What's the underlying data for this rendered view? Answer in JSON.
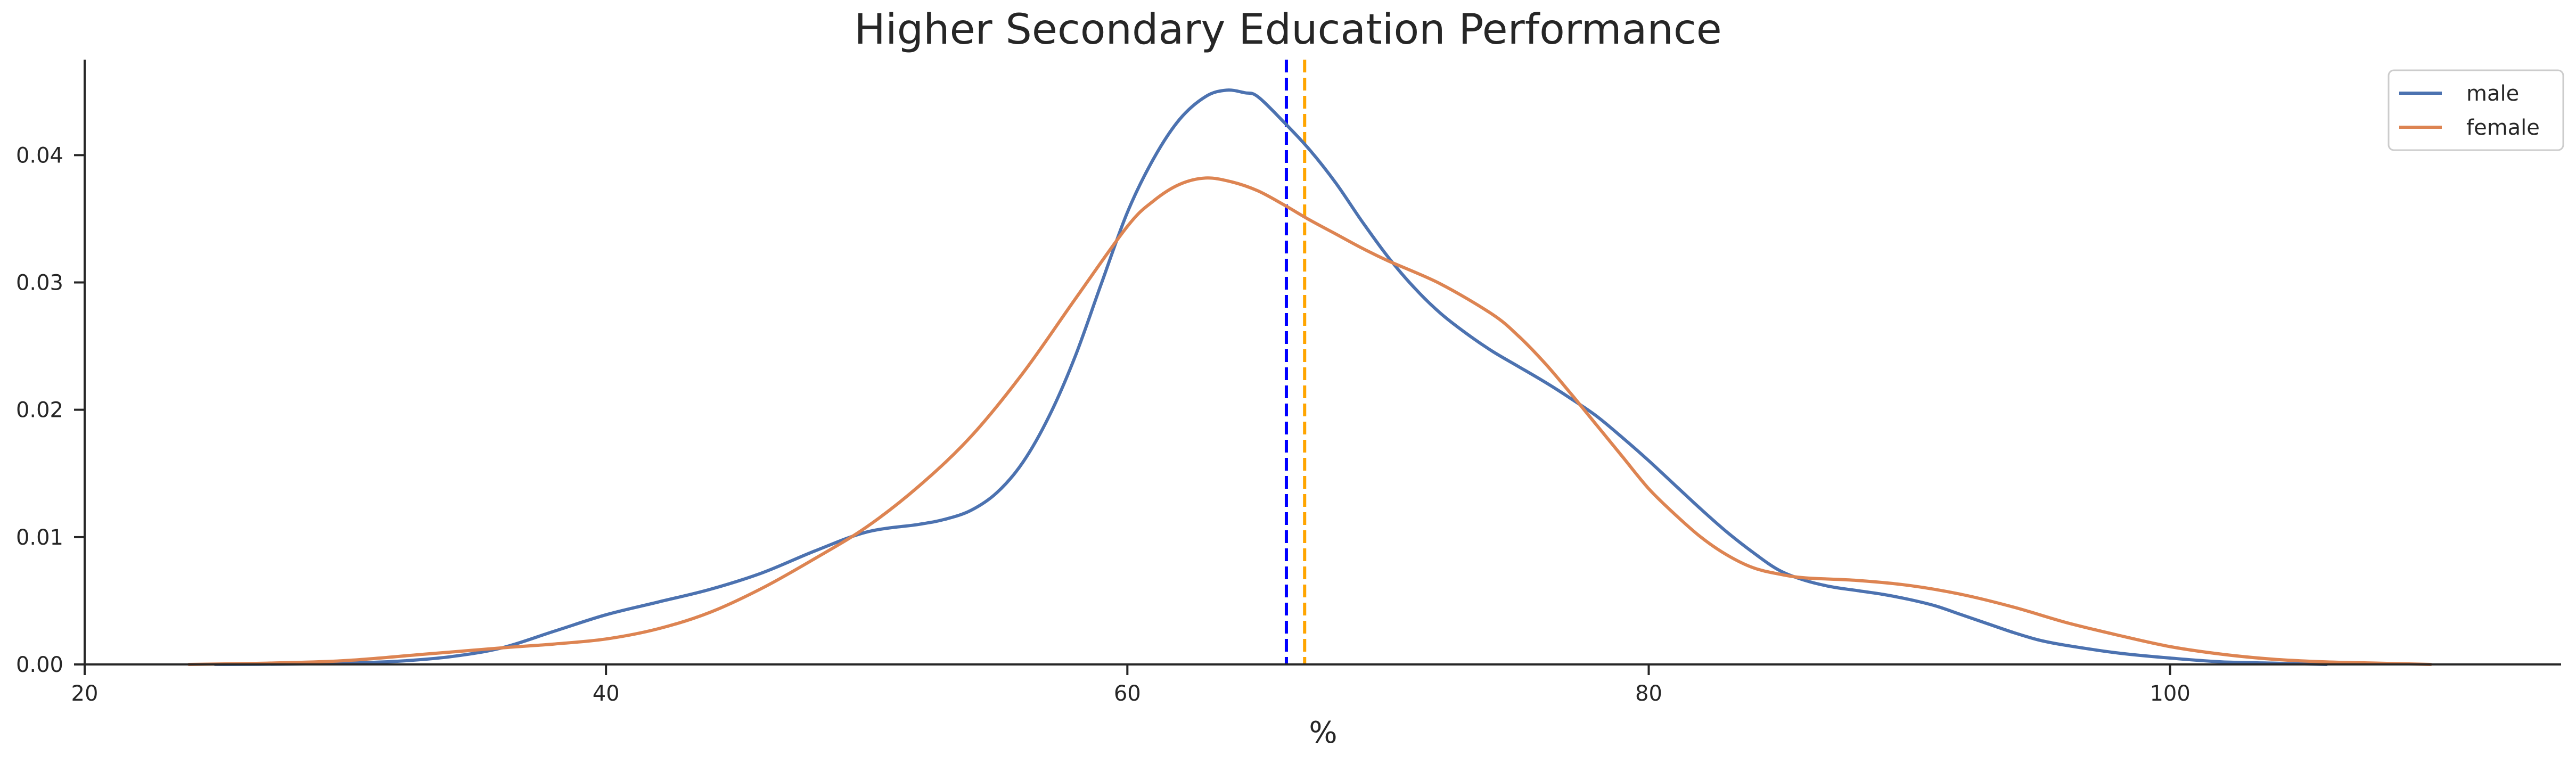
{
  "chart_data": {
    "type": "line",
    "title": "Higher Secondary Education Performance",
    "xlabel": "%",
    "ylabel": "",
    "xlim": [
      20,
      115
    ],
    "ylim": [
      0,
      0.0475
    ],
    "x_ticks": [
      20,
      40,
      60,
      80,
      100
    ],
    "y_ticks": [
      0.0,
      0.01,
      0.02,
      0.03,
      0.04
    ],
    "x_tick_labels": [
      "20",
      "40",
      "60",
      "80",
      "100"
    ],
    "y_tick_labels": [
      "0.00",
      "0.01",
      "0.02",
      "0.03",
      "0.04"
    ],
    "grid": false,
    "legend": {
      "position": "top-right",
      "entries": [
        "male",
        "female"
      ]
    },
    "series": [
      {
        "name": "male",
        "color": "#4c72b0",
        "points": [
          [
            25,
            0.0
          ],
          [
            28,
            3e-05
          ],
          [
            30,
            0.0001
          ],
          [
            32,
            0.00025
          ],
          [
            34,
            0.0006
          ],
          [
            36,
            0.0013
          ],
          [
            38,
            0.0026
          ],
          [
            40,
            0.0039
          ],
          [
            42,
            0.0049
          ],
          [
            44,
            0.0059
          ],
          [
            46,
            0.0072
          ],
          [
            48,
            0.0089
          ],
          [
            50,
            0.0104
          ],
          [
            52,
            0.011
          ],
          [
            53,
            0.0114
          ],
          [
            54,
            0.0121
          ],
          [
            55,
            0.0135
          ],
          [
            56,
            0.0159
          ],
          [
            57,
            0.0195
          ],
          [
            58,
            0.0242
          ],
          [
            59,
            0.0299
          ],
          [
            60,
            0.0355
          ],
          [
            61,
            0.0397
          ],
          [
            62,
            0.0428
          ],
          [
            63,
            0.0446
          ],
          [
            63.8,
            0.0451
          ],
          [
            64.5,
            0.0449
          ],
          [
            65,
            0.0446
          ],
          [
            66,
            0.0426
          ],
          [
            67,
            0.0404
          ],
          [
            68,
            0.0378
          ],
          [
            69,
            0.0348
          ],
          [
            70,
            0.032
          ],
          [
            71,
            0.0296
          ],
          [
            72,
            0.0276
          ],
          [
            73,
            0.026
          ],
          [
            74,
            0.0246
          ],
          [
            75,
            0.0234
          ],
          [
            76,
            0.0222
          ],
          [
            77,
            0.0209
          ],
          [
            78,
            0.0195
          ],
          [
            79,
            0.0178
          ],
          [
            80,
            0.016
          ],
          [
            81,
            0.0141
          ],
          [
            82,
            0.0122
          ],
          [
            83,
            0.0104
          ],
          [
            84,
            0.0088
          ],
          [
            85,
            0.0074
          ],
          [
            86,
            0.0066
          ],
          [
            87,
            0.0061
          ],
          [
            88,
            0.0058
          ],
          [
            89,
            0.0055
          ],
          [
            90,
            0.0051
          ],
          [
            91,
            0.0046
          ],
          [
            92,
            0.0039
          ],
          [
            93,
            0.0032
          ],
          [
            94,
            0.0025
          ],
          [
            95,
            0.0019
          ],
          [
            96,
            0.0015
          ],
          [
            98,
            0.0009
          ],
          [
            100,
            0.0005
          ],
          [
            102,
            0.0002
          ],
          [
            104,
            0.0001
          ],
          [
            106,
            0.0
          ]
        ]
      },
      {
        "name": "female",
        "color": "#dd8452",
        "points": [
          [
            24,
            0.0
          ],
          [
            27,
            0.0001
          ],
          [
            30,
            0.0003
          ],
          [
            33,
            0.0008
          ],
          [
            36,
            0.0013
          ],
          [
            38,
            0.0016
          ],
          [
            40,
            0.002
          ],
          [
            42,
            0.0028
          ],
          [
            44,
            0.0041
          ],
          [
            46,
            0.006
          ],
          [
            48,
            0.0083
          ],
          [
            50,
            0.0108
          ],
          [
            52,
            0.014
          ],
          [
            54,
            0.0179
          ],
          [
            56,
            0.0229
          ],
          [
            58,
            0.0287
          ],
          [
            60,
            0.0344
          ],
          [
            61,
            0.0364
          ],
          [
            62,
            0.0377
          ],
          [
            63,
            0.0382
          ],
          [
            64,
            0.0379
          ],
          [
            65,
            0.0372
          ],
          [
            66,
            0.0361
          ],
          [
            67,
            0.0349
          ],
          [
            68,
            0.0338
          ],
          [
            69,
            0.0327
          ],
          [
            70,
            0.0317
          ],
          [
            72,
            0.0299
          ],
          [
            74,
            0.0275
          ],
          [
            75,
            0.0258
          ],
          [
            76,
            0.0237
          ],
          [
            77,
            0.0213
          ],
          [
            78,
            0.0188
          ],
          [
            79,
            0.0163
          ],
          [
            80,
            0.0138
          ],
          [
            81,
            0.0118
          ],
          [
            82,
            0.01
          ],
          [
            83,
            0.0086
          ],
          [
            84,
            0.0076
          ],
          [
            85,
            0.0071
          ],
          [
            86,
            0.0068
          ],
          [
            88,
            0.0066
          ],
          [
            90,
            0.0062
          ],
          [
            92,
            0.0055
          ],
          [
            94,
            0.0045
          ],
          [
            96,
            0.0033
          ],
          [
            98,
            0.0023
          ],
          [
            100,
            0.0014
          ],
          [
            102,
            0.0008
          ],
          [
            104,
            0.0004
          ],
          [
            106,
            0.0002
          ],
          [
            108,
            0.0001
          ],
          [
            110,
            0.0
          ]
        ]
      }
    ],
    "vertical_lines": [
      {
        "series": "male",
        "x": 66.1,
        "color": "#0000ff",
        "style": "dashed"
      },
      {
        "series": "female",
        "x": 66.8,
        "color": "#ffa500",
        "style": "dashed"
      }
    ]
  }
}
